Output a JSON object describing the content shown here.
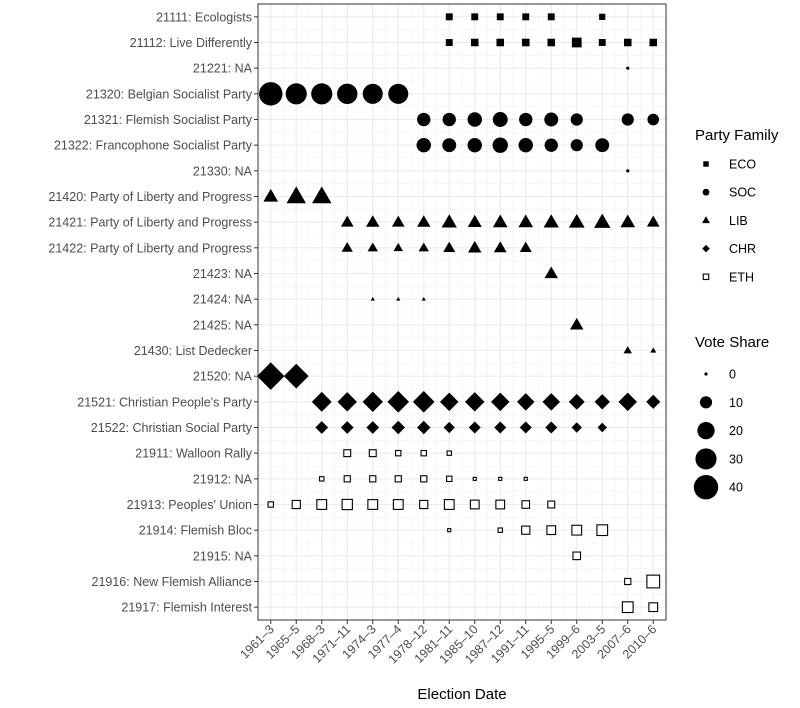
{
  "chart_data": {
    "type": "scatter",
    "xlabel": "Election Date",
    "x_categories": [
      "1961–3",
      "1965–5",
      "1968–3",
      "1971–11",
      "1974–3",
      "1977–4",
      "1978–12",
      "1981–11",
      "1985–10",
      "1987–12",
      "1991–11",
      "1995–5",
      "1999–6",
      "2003–5",
      "2007–6",
      "2010–6"
    ],
    "y_categories": [
      "21111: Ecologists",
      "21112: Live Differently",
      "21221: NA",
      "21320: Belgian Socialist Party",
      "21321: Flemish Socialist Party",
      "21322: Francophone Socialist Party",
      "21330: NA",
      "21420: Party of Liberty and Progress",
      "21421: Party of Liberty and Progress",
      "21422: Party of Liberty and Progress",
      "21423: NA",
      "21424: NA",
      "21425: NA",
      "21430: List Dedecker",
      "21520: NA",
      "21521: Christian People's Party",
      "21522: Christian Social Party",
      "21911: Walloon Rally",
      "21912: NA",
      "21913: Peoples' Union",
      "21914: Flemish Bloc",
      "21915: NA",
      "21916: New Flemish Alliance",
      "21917: Flemish Interest"
    ],
    "legend_family": {
      "title": "Party Family",
      "entries": [
        {
          "label": "ECO",
          "shape": "square"
        },
        {
          "label": "SOC",
          "shape": "circle"
        },
        {
          "label": "LIB",
          "shape": "triangle"
        },
        {
          "label": "CHR",
          "shape": "diamond"
        },
        {
          "label": "ETH",
          "shape": "open-square"
        }
      ]
    },
    "legend_size": {
      "title": "Vote Share",
      "values": [
        0,
        10,
        20,
        30,
        40
      ]
    },
    "series": [
      {
        "party": "21111: Ecologists",
        "family": "ECO",
        "points": [
          [
            "1981–11",
            5
          ],
          [
            "1985–10",
            5
          ],
          [
            "1987–12",
            5
          ],
          [
            "1991–11",
            5
          ],
          [
            "1995–5",
            5
          ],
          [
            "2003–5",
            4
          ]
        ]
      },
      {
        "party": "21112: Live Differently",
        "family": "ECO",
        "points": [
          [
            "1981–11",
            5
          ],
          [
            "1985–10",
            6
          ],
          [
            "1987–12",
            6
          ],
          [
            "1991–11",
            6
          ],
          [
            "1995–5",
            6
          ],
          [
            "1999–6",
            10
          ],
          [
            "2003–5",
            5
          ],
          [
            "2007–6",
            6
          ],
          [
            "2010–6",
            6
          ]
        ]
      },
      {
        "party": "21221: NA",
        "family": "SOC",
        "points": [
          [
            "2007–6",
            0
          ]
        ]
      },
      {
        "party": "21320: Belgian Socialist Party",
        "family": "SOC",
        "points": [
          [
            "1961–3",
            37
          ],
          [
            "1965–5",
            30
          ],
          [
            "1968–3",
            30
          ],
          [
            "1971–11",
            28
          ],
          [
            "1974–3",
            27
          ],
          [
            "1977–4",
            27
          ]
        ]
      },
      {
        "party": "21321: Flemish Socialist Party",
        "family": "SOC",
        "points": [
          [
            "1978–12",
            12
          ],
          [
            "1981–11",
            12
          ],
          [
            "1985–10",
            14
          ],
          [
            "1987–12",
            15
          ],
          [
            "1991–11",
            12
          ],
          [
            "1995–5",
            13
          ],
          [
            "1999–6",
            10
          ],
          [
            "2007–6",
            10
          ],
          [
            "2010–6",
            9
          ]
        ]
      },
      {
        "party": "21322: Francophone Socialist Party",
        "family": "SOC",
        "points": [
          [
            "1978–12",
            14
          ],
          [
            "1981–11",
            13
          ],
          [
            "1985–10",
            14
          ],
          [
            "1987–12",
            16
          ],
          [
            "1991–11",
            14
          ],
          [
            "1995–5",
            12
          ],
          [
            "1999–6",
            10
          ],
          [
            "2003–5",
            13
          ]
        ]
      },
      {
        "party": "21330: NA",
        "family": "SOC",
        "points": [
          [
            "2007–6",
            0
          ]
        ]
      },
      {
        "party": "21420: Party of Liberty and Progress",
        "family": "LIB",
        "points": [
          [
            "1961–3",
            12
          ],
          [
            "1965–5",
            21
          ],
          [
            "1968–3",
            21
          ]
        ]
      },
      {
        "party": "21421: Party of Liberty and Progress",
        "family": "LIB",
        "points": [
          [
            "1971–11",
            9
          ],
          [
            "1974–3",
            10
          ],
          [
            "1977–4",
            9
          ],
          [
            "1978–12",
            10
          ],
          [
            "1981–11",
            13
          ],
          [
            "1985–10",
            11
          ],
          [
            "1987–12",
            12
          ],
          [
            "1991–11",
            12
          ],
          [
            "1995–5",
            13
          ],
          [
            "1999–6",
            14
          ],
          [
            "2003–5",
            15
          ],
          [
            "2007–6",
            12
          ],
          [
            "2010–6",
            9
          ]
        ]
      },
      {
        "party": "21422: Party of Liberty and Progress",
        "family": "LIB",
        "points": [
          [
            "1971–11",
            7
          ],
          [
            "1974–3",
            6
          ],
          [
            "1977–4",
            5
          ],
          [
            "1978–12",
            6
          ],
          [
            "1981–11",
            8
          ],
          [
            "1985–10",
            10
          ],
          [
            "1987–12",
            9
          ],
          [
            "1991–11",
            8
          ]
        ]
      },
      {
        "party": "21423: NA",
        "family": "LIB",
        "points": [
          [
            "1995–5",
            10
          ]
        ]
      },
      {
        "party": "21424: NA",
        "family": "LIB",
        "points": [
          [
            "1974–3",
            1
          ],
          [
            "1977–4",
            1
          ],
          [
            "1978–12",
            1
          ]
        ]
      },
      {
        "party": "21425: NA",
        "family": "LIB",
        "points": [
          [
            "1999–6",
            10
          ]
        ]
      },
      {
        "party": "21430: List Dedecker",
        "family": "LIB",
        "points": [
          [
            "2007–6",
            4
          ],
          [
            "2010–6",
            2
          ]
        ]
      },
      {
        "party": "21520: NA",
        "family": "CHR",
        "points": [
          [
            "1961–3",
            42
          ],
          [
            "1965–5",
            34
          ]
        ]
      },
      {
        "party": "21521: Christian People's Party",
        "family": "CHR",
        "points": [
          [
            "1968–3",
            22
          ],
          [
            "1971–11",
            21
          ],
          [
            "1974–3",
            23
          ],
          [
            "1977–4",
            26
          ],
          [
            "1978–12",
            26
          ],
          [
            "1981–11",
            19
          ],
          [
            "1985–10",
            21
          ],
          [
            "1987–12",
            19
          ],
          [
            "1991–11",
            17
          ],
          [
            "1995–5",
            17
          ],
          [
            "1999–6",
            14
          ],
          [
            "2003–5",
            13
          ],
          [
            "2007–6",
            19
          ],
          [
            "2010–6",
            11
          ]
        ]
      },
      {
        "party": "21522: Christian Social Party",
        "family": "CHR",
        "points": [
          [
            "1968–3",
            9
          ],
          [
            "1971–11",
            9
          ],
          [
            "1974–3",
            9
          ],
          [
            "1977–4",
            10
          ],
          [
            "1978–12",
            10
          ],
          [
            "1981–11",
            7
          ],
          [
            "1985–10",
            8
          ],
          [
            "1987–12",
            8
          ],
          [
            "1991–11",
            8
          ],
          [
            "1995–5",
            8
          ],
          [
            "1999–6",
            6
          ],
          [
            "2003–5",
            5
          ]
        ]
      },
      {
        "party": "21911: Walloon Rally",
        "family": "ETH",
        "points": [
          [
            "1971–11",
            5
          ],
          [
            "1974–3",
            5
          ],
          [
            "1977–4",
            3
          ],
          [
            "1978–12",
            3
          ],
          [
            "1981–11",
            2
          ]
        ]
      },
      {
        "party": "21912: NA",
        "family": "ETH",
        "points": [
          [
            "1968–3",
            2
          ],
          [
            "1971–11",
            4
          ],
          [
            "1974–3",
            4
          ],
          [
            "1977–4",
            4
          ],
          [
            "1978–12",
            4
          ],
          [
            "1981–11",
            3
          ],
          [
            "1985–10",
            1
          ],
          [
            "1987–12",
            1
          ],
          [
            "1991–11",
            1
          ]
        ]
      },
      {
        "party": "21913: Peoples' Union",
        "family": "ETH",
        "points": [
          [
            "1961–3",
            3
          ],
          [
            "1965–5",
            7
          ],
          [
            "1968–3",
            10
          ],
          [
            "1971–11",
            11
          ],
          [
            "1974–3",
            10
          ],
          [
            "1977–4",
            10
          ],
          [
            "1978–12",
            7
          ],
          [
            "1981–11",
            10
          ],
          [
            "1985–10",
            8
          ],
          [
            "1987–12",
            8
          ],
          [
            "1991–11",
            6
          ],
          [
            "1995–5",
            5
          ]
        ]
      },
      {
        "party": "21914: Flemish Bloc",
        "family": "ETH",
        "points": [
          [
            "1981–11",
            1
          ],
          [
            "1987–12",
            2
          ],
          [
            "1991–11",
            7
          ],
          [
            "1995–5",
            8
          ],
          [
            "1999–6",
            10
          ],
          [
            "2003–5",
            12
          ]
        ]
      },
      {
        "party": "21915: NA",
        "family": "ETH",
        "points": [
          [
            "1999–6",
            6
          ]
        ]
      },
      {
        "party": "21916: New Flemish Alliance",
        "family": "ETH",
        "points": [
          [
            "2007–6",
            4
          ],
          [
            "2010–6",
            17
          ]
        ]
      },
      {
        "party": "21917: Flemish Interest",
        "family": "ETH",
        "points": [
          [
            "2007–6",
            12
          ],
          [
            "2010–6",
            8
          ]
        ]
      }
    ]
  }
}
